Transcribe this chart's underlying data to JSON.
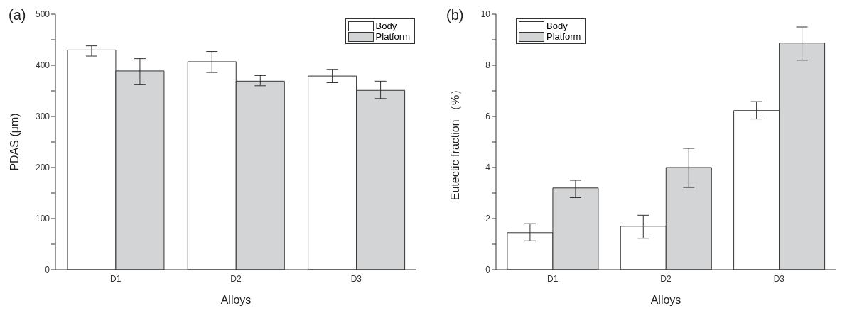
{
  "chart_data": [
    {
      "type": "bar",
      "title": "(a)",
      "xlabel": "Alloys",
      "ylabel": "PDAS (μm)",
      "categories": [
        "D1",
        "D2",
        "D3"
      ],
      "series": [
        {
          "name": "Body",
          "color": "#ffffff",
          "values": [
            430,
            407,
            379
          ],
          "errors": [
            [
              418,
              438
            ],
            [
              386,
              427
            ],
            [
              366,
              392
            ]
          ]
        },
        {
          "name": "Platform",
          "color": "#d3d4d6",
          "values": [
            389,
            369,
            351
          ],
          "errors": [
            [
              362,
              413
            ],
            [
              360,
              380
            ],
            [
              335,
              369
            ]
          ]
        }
      ],
      "ylim": [
        0,
        500
      ],
      "yticks": [
        0,
        {
          "value": 50,
          "label": null
        },
        100,
        {
          "value": 150,
          "label": null
        },
        200,
        {
          "value": 250,
          "label": null
        },
        300,
        {
          "value": 350,
          "label": null
        },
        400,
        {
          "value": 450,
          "label": null
        },
        500
      ],
      "legend": "top right",
      "grid": false
    },
    {
      "type": "bar",
      "title": "(b)",
      "xlabel": "Alloys",
      "ylabel": "Eutectic fraction （%）",
      "categories": [
        "D1",
        "D2",
        "D3"
      ],
      "series": [
        {
          "name": "Body",
          "color": "#ffffff",
          "values": [
            1.45,
            1.7,
            6.23
          ],
          "errors": [
            [
              1.13,
              1.8
            ],
            [
              1.23,
              2.13
            ],
            [
              5.9,
              6.58
            ]
          ]
        },
        {
          "name": "Platform",
          "color": "#d3d4d6",
          "values": [
            3.2,
            4.0,
            8.87
          ],
          "errors": [
            [
              2.82,
              3.5
            ],
            [
              3.22,
              4.75
            ],
            [
              8.2,
              9.5
            ]
          ]
        }
      ],
      "ylim": [
        0,
        10
      ],
      "yticks": [
        0,
        {
          "value": 1,
          "label": null
        },
        2,
        {
          "value": 3,
          "label": null
        },
        4,
        {
          "value": 5,
          "label": null
        },
        6,
        {
          "value": 7,
          "label": null
        },
        8,
        {
          "value": 9,
          "label": null
        },
        10
      ],
      "legend": "top left",
      "grid": false
    }
  ]
}
